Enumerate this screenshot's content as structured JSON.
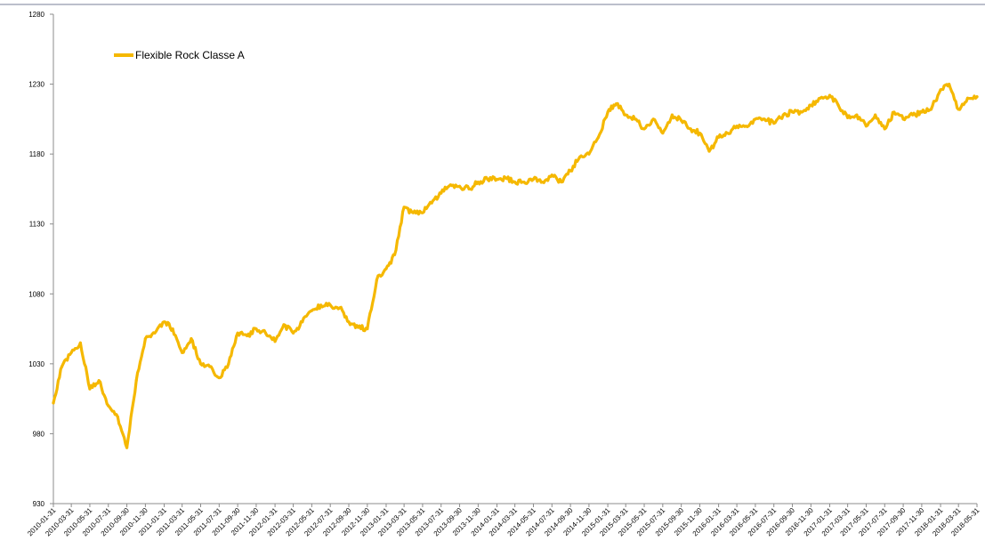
{
  "chart_data": {
    "type": "line",
    "title": "",
    "xlabel": "",
    "ylabel": "",
    "ylim": [
      930,
      1280
    ],
    "yticks": [
      930,
      980,
      1030,
      1080,
      1130,
      1180,
      1230,
      1280
    ],
    "grid": false,
    "legend": {
      "placement": "top-left",
      "entries": [
        "Flexible Rock Classe A"
      ]
    },
    "colors": {
      "series": "#F5B800",
      "axis": "#8c8c8c",
      "top_rule": "#7a7f9a"
    },
    "x_tick_labels": [
      "2010-01-31",
      "2010-03-31",
      "2010-05-31",
      "2010-07-31",
      "2010-09-30",
      "2010-11-30",
      "2011-01-31",
      "2011-03-31",
      "2011-05-31",
      "2011-07-31",
      "2011-09-30",
      "2011-11-30",
      "2012-01-31",
      "2012-03-31",
      "2012-05-31",
      "2012-07-31",
      "2012-09-30",
      "2012-11-30",
      "2013-01-31",
      "2013-03-31",
      "2013-05-31",
      "2013-07-31",
      "2013-09-30",
      "2013-11-30",
      "2014-01-31",
      "2014-03-31",
      "2014-05-31",
      "2014-07-31",
      "2014-09-30",
      "2014-11-30",
      "2015-01-31",
      "2015-03-31",
      "2015-05-31",
      "2015-07-31",
      "2015-09-30",
      "2015-11-30",
      "2016-01-31",
      "2016-03-31",
      "2016-05-31",
      "2016-07-31",
      "2016-09-30",
      "2016-11-30",
      "2017-01-31",
      "2017-03-31",
      "2017-05-31",
      "2017-07-31",
      "2017-09-30",
      "2017-11-30",
      "2018-01-31",
      "2018-03-31",
      "2018-05-31"
    ],
    "series": [
      {
        "name": "Flexible Rock Classe A",
        "x": [
          "2010-01-31",
          "2010-02-28",
          "2010-03-31",
          "2010-04-30",
          "2010-05-31",
          "2010-06-30",
          "2010-07-31",
          "2010-08-31",
          "2010-09-30",
          "2010-10-31",
          "2010-11-30",
          "2010-12-31",
          "2011-01-31",
          "2011-02-28",
          "2011-03-31",
          "2011-04-30",
          "2011-05-31",
          "2011-06-30",
          "2011-07-31",
          "2011-08-31",
          "2011-09-30",
          "2011-10-31",
          "2011-11-30",
          "2011-12-31",
          "2012-01-31",
          "2012-02-29",
          "2012-03-31",
          "2012-04-30",
          "2012-05-31",
          "2012-06-30",
          "2012-07-31",
          "2012-08-31",
          "2012-09-30",
          "2012-10-31",
          "2012-11-30",
          "2012-12-31",
          "2013-01-31",
          "2013-02-28",
          "2013-03-31",
          "2013-04-30",
          "2013-05-31",
          "2013-06-30",
          "2013-07-31",
          "2013-08-31",
          "2013-09-30",
          "2013-10-31",
          "2013-11-30",
          "2013-12-31",
          "2014-01-31",
          "2014-02-28",
          "2014-03-31",
          "2014-04-30",
          "2014-05-31",
          "2014-06-30",
          "2014-07-31",
          "2014-08-31",
          "2014-09-30",
          "2014-10-31",
          "2014-11-30",
          "2014-12-31",
          "2015-01-31",
          "2015-02-28",
          "2015-03-31",
          "2015-04-30",
          "2015-05-31",
          "2015-06-30",
          "2015-07-31",
          "2015-08-31",
          "2015-09-30",
          "2015-10-31",
          "2015-11-30",
          "2015-12-31",
          "2016-01-31",
          "2016-02-29",
          "2016-03-31",
          "2016-04-30",
          "2016-05-31",
          "2016-06-30",
          "2016-07-31",
          "2016-08-31",
          "2016-09-30",
          "2016-10-31",
          "2016-11-30",
          "2016-12-31",
          "2017-01-31",
          "2017-02-28",
          "2017-03-31",
          "2017-04-30",
          "2017-05-31",
          "2017-06-30",
          "2017-07-31",
          "2017-08-31",
          "2017-09-30",
          "2017-10-31",
          "2017-11-30",
          "2017-12-31",
          "2018-01-31",
          "2018-02-28",
          "2018-03-31",
          "2018-04-30",
          "2018-05-31"
        ],
        "values": [
          1002,
          1028,
          1038,
          1045,
          1012,
          1018,
          1000,
          992,
          970,
          1018,
          1048,
          1052,
          1060,
          1055,
          1038,
          1048,
          1030,
          1028,
          1020,
          1030,
          1052,
          1050,
          1055,
          1052,
          1046,
          1058,
          1052,
          1060,
          1068,
          1072,
          1072,
          1070,
          1060,
          1056,
          1055,
          1090,
          1098,
          1108,
          1142,
          1138,
          1138,
          1145,
          1152,
          1158,
          1157,
          1155,
          1160,
          1162,
          1162,
          1163,
          1160,
          1160,
          1162,
          1160,
          1165,
          1160,
          1168,
          1178,
          1180,
          1192,
          1210,
          1216,
          1208,
          1205,
          1198,
          1205,
          1195,
          1208,
          1204,
          1198,
          1195,
          1182,
          1192,
          1195,
          1200,
          1200,
          1205,
          1205,
          1202,
          1208,
          1210,
          1210,
          1215,
          1220,
          1222,
          1215,
          1206,
          1208,
          1200,
          1208,
          1198,
          1210,
          1205,
          1208,
          1210,
          1212,
          1226,
          1230,
          1212,
          1220,
          1221
        ]
      }
    ]
  }
}
